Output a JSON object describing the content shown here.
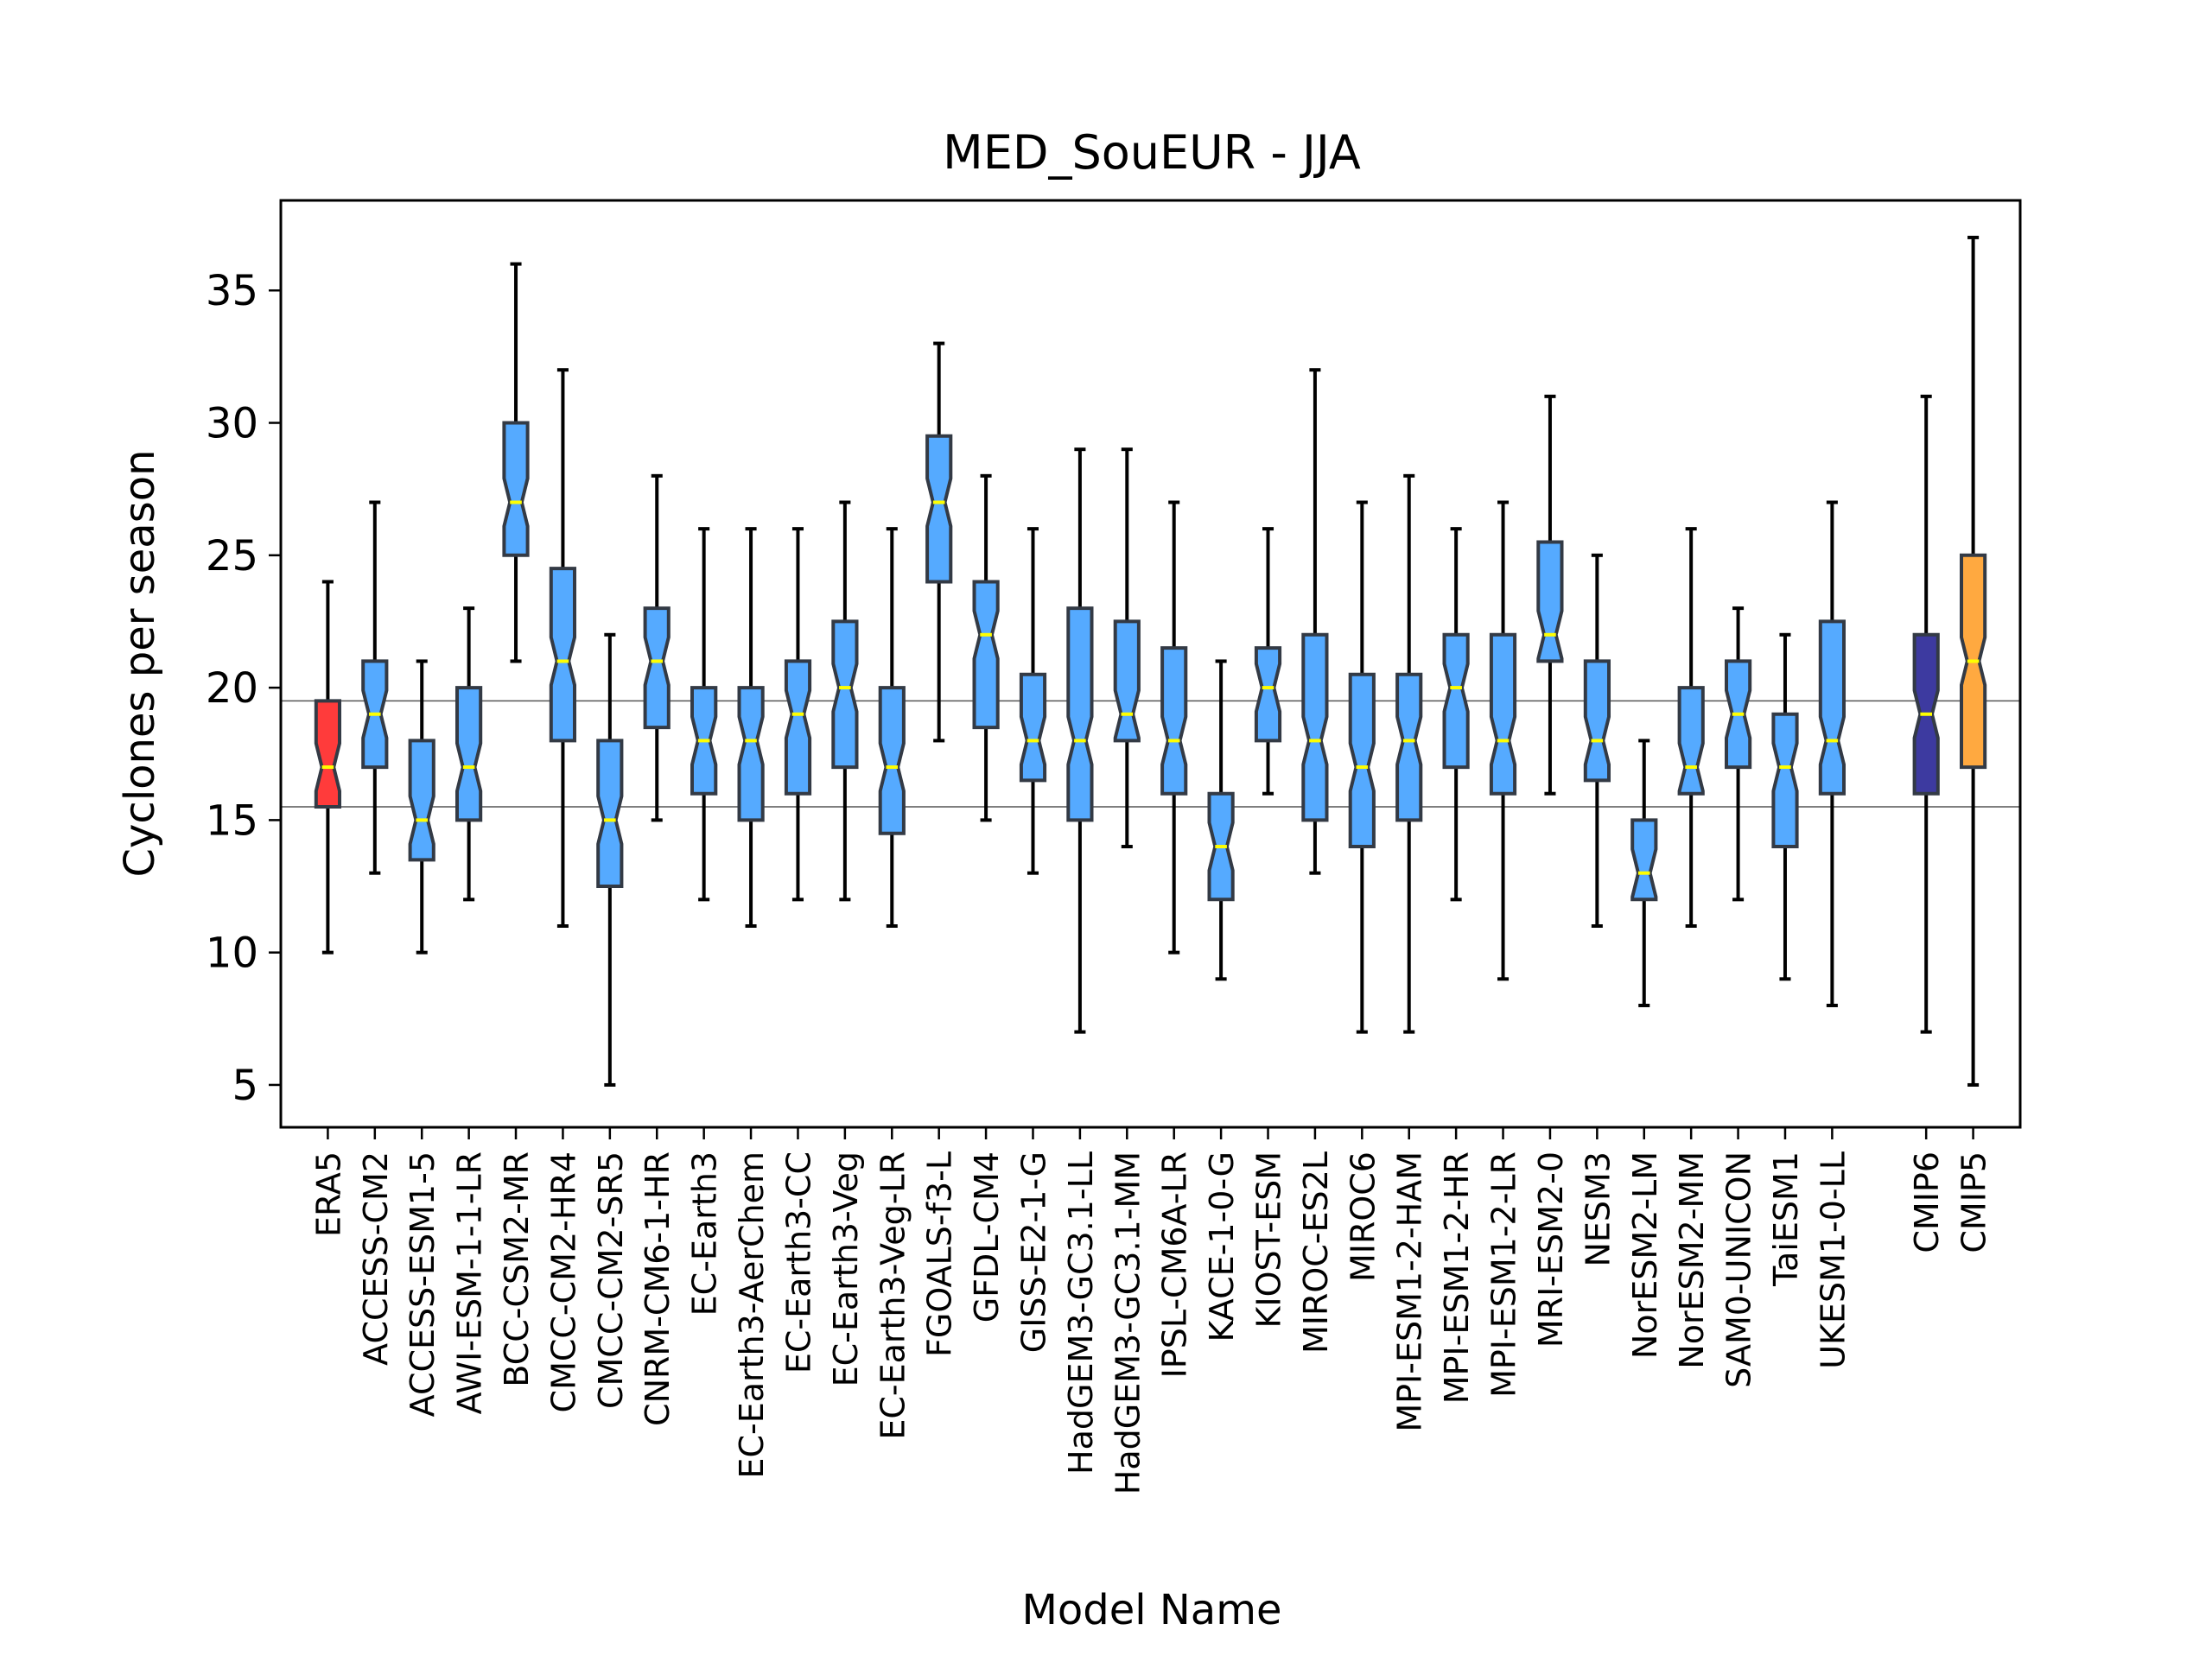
{
  "chart_data": {
    "type": "boxplot",
    "title": "MED_SouEUR - JJA",
    "xlabel": "Model Name",
    "ylabel": "Cyclones per season",
    "ylim": [
      3.4,
      38.4
    ],
    "yticks": [
      5,
      10,
      15,
      20,
      25,
      30,
      35
    ],
    "notched": true,
    "grid": false,
    "reference_lines": [
      15.5,
      19.5
    ],
    "colors": {
      "reanalysis": "#ff3b3b",
      "model": "#55aaff",
      "cmip6": "#3d3aa0",
      "cmip5": "#ffa940",
      "median": "#ffff00",
      "box_edge": "#333a45",
      "whisker": "#000000"
    },
    "boxes": [
      {
        "name": "ERA5",
        "group": "reanalysis",
        "min": 10,
        "q1": 15.5,
        "median": 17,
        "q3": 19.5,
        "max": 24
      },
      {
        "name": "ACCESS-CM2",
        "group": "model",
        "min": 13,
        "q1": 17,
        "median": 19,
        "q3": 21,
        "max": 27
      },
      {
        "name": "ACCESS-ESM1-5",
        "group": "model",
        "min": 10,
        "q1": 13.5,
        "median": 15,
        "q3": 18,
        "max": 21
      },
      {
        "name": "AWI-ESM-1-1-LR",
        "group": "model",
        "min": 12,
        "q1": 15,
        "median": 17,
        "q3": 20,
        "max": 23
      },
      {
        "name": "BCC-CSM2-MR",
        "group": "model",
        "min": 21,
        "q1": 25,
        "median": 27,
        "q3": 30,
        "max": 36
      },
      {
        "name": "CMCC-CM2-HR4",
        "group": "model",
        "min": 11,
        "q1": 18,
        "median": 21,
        "q3": 24.5,
        "max": 32
      },
      {
        "name": "CMCC-CM2-SR5",
        "group": "model",
        "min": 5,
        "q1": 12.5,
        "median": 15,
        "q3": 18,
        "max": 22
      },
      {
        "name": "CNRM-CM6-1-HR",
        "group": "model",
        "min": 15,
        "q1": 18.5,
        "median": 21,
        "q3": 23,
        "max": 28
      },
      {
        "name": "EC-Earth3",
        "group": "model",
        "min": 12,
        "q1": 16,
        "median": 18,
        "q3": 20,
        "max": 26
      },
      {
        "name": "EC-Earth3-AerChem",
        "group": "model",
        "min": 11,
        "q1": 15,
        "median": 18,
        "q3": 20,
        "max": 26
      },
      {
        "name": "EC-Earth3-CC",
        "group": "model",
        "min": 12,
        "q1": 16,
        "median": 19,
        "q3": 21,
        "max": 26
      },
      {
        "name": "EC-Earth3-Veg",
        "group": "model",
        "min": 12,
        "q1": 17,
        "median": 20,
        "q3": 22.5,
        "max": 27
      },
      {
        "name": "EC-Earth3-Veg-LR",
        "group": "model",
        "min": 11,
        "q1": 14.5,
        "median": 17,
        "q3": 20,
        "max": 26
      },
      {
        "name": "FGOALS-f3-L",
        "group": "model",
        "min": 18,
        "q1": 24,
        "median": 27,
        "q3": 29.5,
        "max": 33
      },
      {
        "name": "GFDL-CM4",
        "group": "model",
        "min": 15,
        "q1": 18.5,
        "median": 22,
        "q3": 24,
        "max": 28
      },
      {
        "name": "GISS-E2-1-G",
        "group": "model",
        "min": 13,
        "q1": 16.5,
        "median": 18,
        "q3": 20.5,
        "max": 26
      },
      {
        "name": "HadGEM3-GC3.1-LL",
        "group": "model",
        "min": 7,
        "q1": 15,
        "median": 18,
        "q3": 23,
        "max": 29
      },
      {
        "name": "HadGEM3-GC3.1-MM",
        "group": "model",
        "min": 14,
        "q1": 18,
        "median": 19,
        "q3": 22.5,
        "max": 29
      },
      {
        "name": "IPSL-CM6A-LR",
        "group": "model",
        "min": 10,
        "q1": 16,
        "median": 18,
        "q3": 21.5,
        "max": 27
      },
      {
        "name": "KACE-1-0-G",
        "group": "model",
        "min": 9,
        "q1": 12,
        "median": 14,
        "q3": 16,
        "max": 21
      },
      {
        "name": "KIOST-ESM",
        "group": "model",
        "min": 16,
        "q1": 18,
        "median": 20,
        "q3": 21.5,
        "max": 26
      },
      {
        "name": "MIROC-ES2L",
        "group": "model",
        "min": 13,
        "q1": 15,
        "median": 18,
        "q3": 22,
        "max": 32
      },
      {
        "name": "MIROC6",
        "group": "model",
        "min": 7,
        "q1": 14,
        "median": 17,
        "q3": 20.5,
        "max": 27
      },
      {
        "name": "MPI-ESM1-2-HAM",
        "group": "model",
        "min": 7,
        "q1": 15,
        "median": 18,
        "q3": 20.5,
        "max": 28
      },
      {
        "name": "MPI-ESM1-2-HR",
        "group": "model",
        "min": 12,
        "q1": 17,
        "median": 20,
        "q3": 22,
        "max": 26
      },
      {
        "name": "MPI-ESM1-2-LR",
        "group": "model",
        "min": 9,
        "q1": 16,
        "median": 18,
        "q3": 22,
        "max": 27
      },
      {
        "name": "MRI-ESM2-0",
        "group": "model",
        "min": 16,
        "q1": 21,
        "median": 22,
        "q3": 25.5,
        "max": 31
      },
      {
        "name": "NESM3",
        "group": "model",
        "min": 11,
        "q1": 16.5,
        "median": 18,
        "q3": 21,
        "max": 25
      },
      {
        "name": "NorESM2-LM",
        "group": "model",
        "min": 8,
        "q1": 12,
        "median": 13,
        "q3": 15,
        "max": 18
      },
      {
        "name": "NorESM2-MM",
        "group": "model",
        "min": 11,
        "q1": 16,
        "median": 17,
        "q3": 20,
        "max": 26
      },
      {
        "name": "SAM0-UNICON",
        "group": "model",
        "min": 12,
        "q1": 17,
        "median": 19,
        "q3": 21,
        "max": 23
      },
      {
        "name": "TaiESM1",
        "group": "model",
        "min": 9,
        "q1": 14,
        "median": 17,
        "q3": 19,
        "max": 22
      },
      {
        "name": "UKESM1-0-LL",
        "group": "model",
        "min": 8,
        "q1": 16,
        "median": 18,
        "q3": 22.5,
        "max": 27
      },
      {
        "name": "CMIP6",
        "group": "cmip6",
        "min": 7,
        "q1": 16,
        "median": 19,
        "q3": 22,
        "max": 31
      },
      {
        "name": "CMIP5",
        "group": "cmip5",
        "min": 5,
        "q1": 17,
        "median": 21,
        "q3": 25,
        "max": 37
      }
    ],
    "positions": [
      1,
      2,
      3,
      4,
      5,
      6,
      7,
      8,
      9,
      10,
      11,
      12,
      13,
      14,
      15,
      16,
      17,
      18,
      19,
      20,
      21,
      22,
      23,
      24,
      25,
      26,
      27,
      28,
      29,
      30,
      31,
      32,
      33,
      35,
      36
    ],
    "xlim": [
      0,
      37
    ]
  }
}
